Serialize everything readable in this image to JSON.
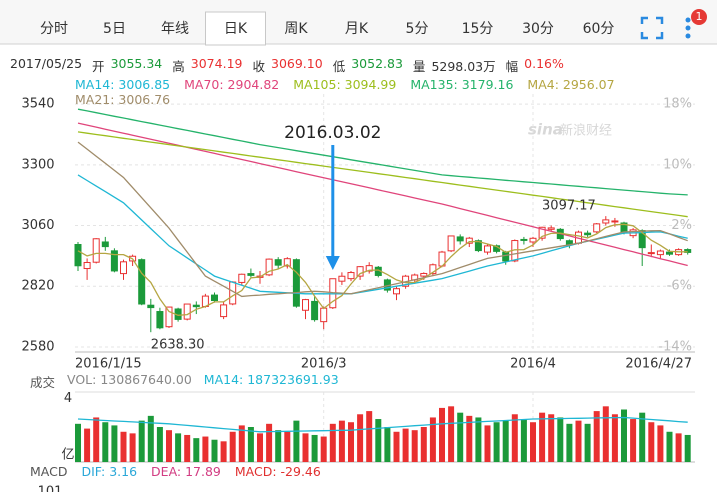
{
  "tabs": [
    "分时",
    "5日",
    "年线",
    "日K",
    "周K",
    "月K",
    "5分",
    "15分",
    "30分",
    "60分"
  ],
  "active_tab": "日K",
  "badge": "1",
  "quote": {
    "date": "2017/05/25",
    "items": [
      {
        "label": "开",
        "value": "3055.34",
        "color": "#1b9a3a"
      },
      {
        "label": "高",
        "value": "3074.19",
        "color": "#e93030"
      },
      {
        "label": "收",
        "value": "3069.10",
        "color": "#e93030"
      },
      {
        "label": "低",
        "value": "3052.83",
        "color": "#1b9a3a"
      },
      {
        "label": "量",
        "value": "5298.03万",
        "color": "#333333"
      },
      {
        "label": "幅",
        "value": "0.16%",
        "color": "#e93030"
      }
    ]
  },
  "chart_data": [
    {
      "type": "candlestick",
      "categories": [
        "2016/1/15",
        null,
        null,
        null,
        null,
        null,
        null,
        null,
        null,
        null,
        null,
        null,
        null,
        null,
        null,
        null,
        null,
        null,
        null,
        null,
        null,
        null,
        null,
        null,
        null,
        null,
        null,
        "2016/3",
        null,
        null,
        null,
        null,
        null,
        null,
        null,
        null,
        null,
        null,
        null,
        null,
        null,
        null,
        null,
        null,
        null,
        null,
        null,
        null,
        null,
        null,
        "2016/4",
        null,
        null,
        null,
        null,
        null,
        null,
        null,
        null,
        null,
        null,
        null,
        null,
        null,
        null,
        null,
        null,
        "2016/4/27"
      ],
      "open": [
        2985,
        2890,
        2915,
        2995,
        2960,
        2870,
        2920,
        2925,
        2745,
        2720,
        2660,
        2730,
        2690,
        2745,
        2740,
        2785,
        2700,
        2750,
        2835,
        2870,
        2855,
        2865,
        2925,
        2900,
        2925,
        2725,
        2760,
        2680,
        2735,
        2840,
        2850,
        2860,
        2880,
        2895,
        2845,
        2790,
        2820,
        2845,
        2860,
        2870,
        2900,
        2960,
        3015,
        2990,
        3000,
        2955,
        2980,
        2955,
        2920,
        3005,
        2995,
        3010,
        3045,
        3045,
        3000,
        2990,
        3030,
        3035,
        3070,
        3075,
        3070,
        3020,
        3040,
        2950,
        2945,
        2955,
        2945,
        2965
      ],
      "high": [
        2995,
        2930,
        3010,
        3015,
        2970,
        2925,
        2945,
        2930,
        2770,
        2735,
        2740,
        2735,
        2750,
        2760,
        2790,
        2795,
        2760,
        2840,
        2870,
        2890,
        2880,
        2930,
        2935,
        2935,
        2930,
        2770,
        2780,
        2740,
        2850,
        2875,
        2880,
        2900,
        2915,
        2900,
        2850,
        2820,
        2865,
        2870,
        2875,
        2910,
        2960,
        3020,
        3025,
        3015,
        3005,
        2985,
        2985,
        2960,
        3005,
        3015,
        3015,
        3055,
        3060,
        3050,
        3005,
        3040,
        3040,
        3070,
        3097.17,
        3090,
        3075,
        3050,
        3045,
        2985,
        2965,
        2965,
        2970,
        2970
      ],
      "low": [
        2880,
        2845,
        2910,
        2960,
        2875,
        2845,
        2900,
        2745,
        2638.3,
        2650,
        2655,
        2680,
        2685,
        2710,
        2735,
        2755,
        2690,
        2745,
        2825,
        2855,
        2830,
        2860,
        2890,
        2890,
        2735,
        2690,
        2680,
        2650,
        2730,
        2825,
        2840,
        2845,
        2870,
        2855,
        2795,
        2765,
        2810,
        2830,
        2845,
        2860,
        2895,
        2955,
        2985,
        2975,
        2955,
        2945,
        2950,
        2905,
        2915,
        2985,
        2975,
        3000,
        3035,
        3000,
        2970,
        2985,
        3015,
        3030,
        3060,
        3055,
        3025,
        3010,
        2900,
        2935,
        2930,
        2940,
        2940,
        2945
      ],
      "close": [
        2900.97,
        2913.84,
        3007.65,
        2976.69,
        2880.48,
        2916.56,
        2938.51,
        2749.79,
        2735.56,
        2655.66,
        2737.6,
        2688.85,
        2749.57,
        2739.25,
        2781.02,
        2763.49,
        2746.2,
        2836.57,
        2867.34,
        2862.89,
        2860.02,
        2927.18,
        2903.33,
        2928.9,
        2741.25,
        2767.21,
        2687.98,
        2733.17,
        2849.68,
        2859.5,
        2874.15,
        2897.34,
        2901.39,
        2862.56,
        2804.73,
        2810.31,
        2859.76,
        2864.37,
        2870.43,
        2904.83,
        2955.15,
        3018.8,
        2999.36,
        3009.96,
        2960.97,
        2979.43,
        2957.82,
        2919.83,
        3000.65,
        3003.92,
        3009.53,
        3053.07,
        3050.59,
        3008.42,
        2984.96,
        3033.96,
        3023.65,
        3066.64,
        3082.36,
        3078.12,
        3033.66,
        3042.82,
        2972.58,
        2952.89,
        2959.24,
        2946.67,
        2964.7,
        2953.67
      ],
      "colors": {
        "up": "#e93030",
        "down": "#1b9a3a"
      },
      "series": [
        {
          "name": "MA14: 3006.85",
          "color": "#1fb7d4",
          "values": [
            3260,
            3238,
            3216,
            3194,
            3172,
            3150,
            3116,
            3082,
            3048,
            3014,
            2980,
            2956,
            2932,
            2908,
            2884,
            2860,
            2848,
            2836,
            2824,
            2812,
            2800,
            2798,
            2796,
            2794,
            2792,
            2790,
            2790,
            2790,
            2790,
            2790,
            2790,
            2796,
            2802,
            2808,
            2814,
            2820,
            2826,
            2832,
            2838,
            2844,
            2850,
            2860,
            2870,
            2880,
            2890,
            2900,
            2908,
            2916,
            2924,
            2932,
            2940,
            2950,
            2960,
            2970,
            2980,
            2990,
            2998,
            3006,
            3014,
            3022,
            3030,
            3031,
            3032,
            3034,
            3035,
            3027,
            3018,
            3010
          ]
        },
        {
          "name": "MA70: 2904.82",
          "color": "#e0457b",
          "values": [
            3465,
            3457,
            3449,
            3441,
            3433,
            3425,
            3417,
            3409,
            3401,
            3393,
            3385,
            3377,
            3369,
            3361,
            3353,
            3345,
            3337,
            3329,
            3321,
            3313,
            3305,
            3297,
            3289,
            3281,
            3273,
            3265,
            3257,
            3249,
            3241,
            3233,
            3225,
            3217,
            3209,
            3201,
            3193,
            3185,
            3177,
            3169,
            3161,
            3153,
            3145,
            3136,
            3127,
            3118,
            3109,
            3100,
            3091,
            3082,
            3073,
            3064,
            3055,
            3046,
            3037,
            3028,
            3019,
            3010,
            3001,
            2992,
            2983,
            2974,
            2965,
            2956,
            2947,
            2938,
            2929,
            2920,
            2911,
            2902
          ]
        },
        {
          "name": "MA105: 3094.99",
          "color": "#9dbe1d",
          "values": [
            3430,
            3425,
            3420,
            3415,
            3410,
            3405,
            3400,
            3395,
            3390,
            3385,
            3380,
            3375,
            3370,
            3365,
            3360,
            3355,
            3350,
            3345,
            3340,
            3335,
            3330,
            3325,
            3320,
            3315,
            3310,
            3305,
            3300,
            3295,
            3290,
            3285,
            3280,
            3275,
            3270,
            3265,
            3260,
            3255,
            3250,
            3245,
            3240,
            3235,
            3230,
            3225,
            3220,
            3215,
            3210,
            3205,
            3200,
            3195,
            3190,
            3185,
            3180,
            3175,
            3170,
            3165,
            3160,
            3155,
            3150,
            3145,
            3140,
            3135,
            3130,
            3125,
            3120,
            3115,
            3110,
            3105,
            3100,
            3095
          ]
        },
        {
          "name": "MA135: 3179.16",
          "color": "#25b36b",
          "values": [
            3520,
            3513,
            3506,
            3499,
            3492,
            3485,
            3478,
            3471,
            3464,
            3457,
            3450,
            3443,
            3436,
            3429,
            3422,
            3415,
            3408,
            3401,
            3394,
            3387,
            3380,
            3374,
            3368,
            3362,
            3356,
            3350,
            3344,
            3338,
            3332,
            3326,
            3320,
            3314,
            3308,
            3302,
            3296,
            3290,
            3284,
            3278,
            3272,
            3266,
            3260,
            3257,
            3254,
            3251,
            3248,
            3245,
            3242,
            3239,
            3236,
            3233,
            3230,
            3227,
            3224,
            3221,
            3218,
            3215,
            3212,
            3209,
            3206,
            3203,
            3200,
            3197,
            3194,
            3191,
            3188,
            3185,
            3183,
            3181
          ]
        },
        {
          "name": "MA4: 2956.07",
          "color": "#b5a642",
          "values": [
            2960,
            2940,
            2950,
            2950,
            2945,
            2945,
            2928,
            2871,
            2835,
            2770,
            2720,
            2705,
            2708,
            2729,
            2740,
            2758,
            2758,
            2782,
            2803,
            2853,
            2857,
            2879,
            2888,
            2905,
            2875,
            2835,
            2781,
            2732,
            2760,
            2783,
            2829,
            2870,
            2883,
            2884,
            2866,
            2845,
            2834,
            2835,
            2851,
            2875,
            2899,
            2937,
            2970,
            2996,
            2997,
            2987,
            2977,
            2954,
            2964,
            2965,
            2983,
            3017,
            3029,
            3030,
            3024,
            3019,
            3011,
            3027,
            3052,
            3063,
            3065,
            3059,
            3032,
            3002,
            2982,
            2958,
            2956,
            2956
          ]
        },
        {
          "name": "MA21: 3006.76",
          "color": "#a08c6a",
          "values": [
            3390,
            3362,
            3334,
            3306,
            3278,
            3250,
            3210,
            3170,
            3130,
            3090,
            3050,
            3002,
            2955,
            2907,
            2860,
            2840,
            2820,
            2800,
            2780,
            2783,
            2785,
            2788,
            2790,
            2793,
            2795,
            2798,
            2800,
            2798,
            2795,
            2793,
            2790,
            2798,
            2806,
            2814,
            2822,
            2830,
            2838,
            2846,
            2854,
            2862,
            2870,
            2882,
            2894,
            2906,
            2918,
            2930,
            2936,
            2942,
            2948,
            2954,
            2960,
            2966,
            2972,
            2978,
            2984,
            2990,
            2999,
            3008,
            3017,
            3026,
            3035,
            3036,
            3038,
            3039,
            3040,
            3027,
            3013,
            3000
          ]
        }
      ],
      "ylim": [
        2560,
        3580
      ],
      "yticks": [
        2580,
        2820,
        3060,
        3300,
        3540
      ],
      "y2lim": [
        -14.67,
        19.33
      ],
      "y2ticks": [
        {
          "value": 18,
          "label": "18%"
        },
        {
          "value": 10,
          "label": "10%"
        },
        {
          "value": 2,
          "label": "2%"
        },
        {
          "value": -6,
          "label": "-6%"
        },
        {
          "value": -14,
          "label": "-14%"
        }
      ],
      "grid": true,
      "annotations": [
        "2016.03.02",
        "3097.17",
        "2638.30"
      ],
      "watermark": [
        "sina",
        "新浪财经"
      ]
    },
    {
      "type": "bar",
      "label": "成交",
      "legend": "VOL: 130867640.00",
      "values": [
        2.4,
        2.1,
        2.8,
        2.5,
        2.3,
        1.9,
        1.8,
        2.6,
        2.9,
        2.2,
        2.0,
        1.8,
        1.7,
        1.5,
        1.6,
        1.4,
        1.3,
        1.9,
        2.3,
        2.2,
        1.8,
        2.4,
        2.0,
        1.9,
        2.6,
        1.8,
        1.7,
        1.6,
        2.4,
        2.6,
        2.5,
        3.0,
        3.2,
        2.7,
        2.2,
        1.9,
        2.1,
        2.0,
        2.2,
        2.8,
        3.4,
        3.5,
        3.1,
        2.9,
        2.8,
        2.3,
        2.5,
        2.6,
        3.0,
        2.7,
        2.5,
        3.1,
        3.0,
        2.8,
        2.4,
        2.6,
        2.4,
        3.2,
        3.5,
        3.0,
        3.3,
        2.7,
        3.1,
        2.5,
        2.3,
        1.9,
        1.8,
        1.7
      ],
      "series": [
        {
          "name": "MA14: 187323691.93",
          "color": "#1fb7d4",
          "values": [
            2.7,
            2.67,
            2.64,
            2.61,
            2.58,
            2.55,
            2.52,
            2.49,
            2.46,
            2.43,
            2.4,
            2.35,
            2.3,
            2.25,
            2.2,
            2.15,
            2.1,
            2.05,
            2,
            1.95,
            1.9,
            1.91,
            1.92,
            1.93,
            1.94,
            1.95,
            1.96,
            1.97,
            1.98,
            1.99,
            2,
            2.04,
            2.08,
            2.12,
            2.16,
            2.2,
            2.24,
            2.28,
            2.32,
            2.36,
            2.4,
            2.43,
            2.46,
            2.49,
            2.52,
            2.55,
            2.58,
            2.61,
            2.64,
            2.67,
            2.7,
            2.71,
            2.72,
            2.73,
            2.74,
            2.75,
            2.76,
            2.77,
            2.78,
            2.79,
            2.8,
            2.76,
            2.71,
            2.67,
            2.63,
            2.59,
            2.54,
            2.5
          ]
        }
      ],
      "ylim": [
        0,
        4.4
      ],
      "yticks": [
        4
      ],
      "y_unit": "亿"
    }
  ],
  "macd": {
    "label": "MACD",
    "items": [
      {
        "text": "DIF: 3.16",
        "color": "#2aa7d8"
      },
      {
        "text": "DEA: 17.89",
        "color": "#d23c82"
      },
      {
        "text": "MACD: -29.46",
        "color": "#e03030"
      }
    ],
    "ytick": "101"
  }
}
